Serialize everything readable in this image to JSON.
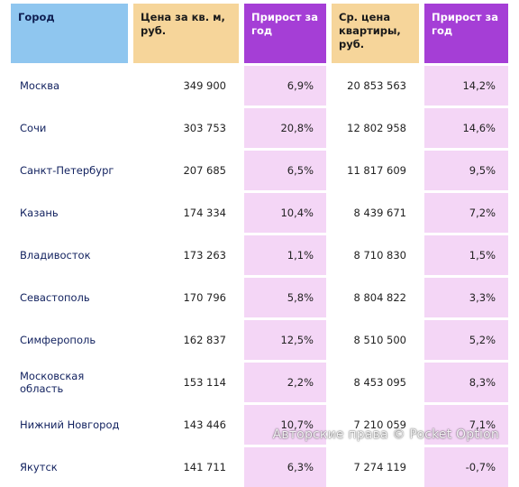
{
  "headers": {
    "city": "Город",
    "price_sqm": "Цена за кв. м, руб.",
    "growth_sqm": "Прирост за год",
    "avg_price": "Ср. цена квартиры, руб.",
    "growth_avg": "Прирост за год"
  },
  "rows": [
    {
      "city": "Москва",
      "price_sqm": "349 900",
      "growth_sqm": "6,9%",
      "avg_price": "20 853 563",
      "growth_avg": "14,2%"
    },
    {
      "city": "Сочи",
      "price_sqm": "303 753",
      "growth_sqm": "20,8%",
      "avg_price": "12 802 958",
      "growth_avg": "14,6%"
    },
    {
      "city": "Санкт-Петербург",
      "price_sqm": "207 685",
      "growth_sqm": "6,5%",
      "avg_price": "11 817 609",
      "growth_avg": "9,5%"
    },
    {
      "city": "Казань",
      "price_sqm": "174 334",
      "growth_sqm": "10,4%",
      "avg_price": "8 439 671",
      "growth_avg": "7,2%"
    },
    {
      "city": "Владивосток",
      "price_sqm": "173 263",
      "growth_sqm": "1,1%",
      "avg_price": "8 710 830",
      "growth_avg": "1,5%"
    },
    {
      "city": "Севастополь",
      "price_sqm": "170 796",
      "growth_sqm": "5,8%",
      "avg_price": "8 804 822",
      "growth_avg": "3,3%"
    },
    {
      "city": "Симферополь",
      "price_sqm": "162 837",
      "growth_sqm": "12,5%",
      "avg_price": "8 510 500",
      "growth_avg": "5,2%"
    },
    {
      "city": "Московская область",
      "price_sqm": "153 114",
      "growth_sqm": "2,2%",
      "avg_price": "8 453 095",
      "growth_avg": "8,3%"
    },
    {
      "city": "Нижний Новгород",
      "price_sqm": "143 446",
      "growth_sqm": "10,7%",
      "avg_price": "7 210 059",
      "growth_avg": "7,1%"
    },
    {
      "city": "Якутск",
      "price_sqm": "141 711",
      "growth_sqm": "6,3%",
      "avg_price": "7 274 119",
      "growth_avg": "-0,7%"
    }
  ],
  "watermark": "Авторские права © Pocket Option",
  "colors": {
    "city_header": "#8fc6ef",
    "price_header": "#f6d59a",
    "growth_header": "#a53ed6",
    "growth_cell": "#f4d6f6"
  }
}
